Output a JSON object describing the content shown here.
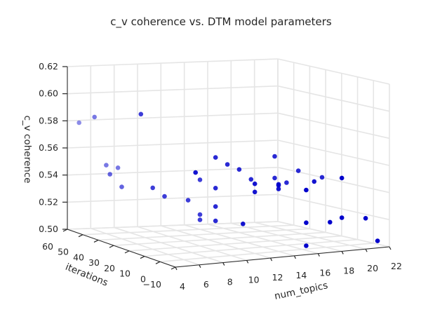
{
  "chart_data": {
    "type": "scatter",
    "projection": "3d",
    "title": "c_v coherence vs. DTM model parameters",
    "xlabel": "num_topics",
    "ylabel": "iterations",
    "zlabel": "c_v coherence",
    "xlim": [
      4,
      22
    ],
    "ylim": [
      -10,
      60
    ],
    "zlim": [
      0.5,
      0.62
    ],
    "x_ticks": [
      "4",
      "6",
      "8",
      "10",
      "12",
      "14",
      "16",
      "18",
      "20",
      "22"
    ],
    "y_ticks": [
      "−10",
      "0",
      "10",
      "20",
      "30",
      "40",
      "50",
      "60"
    ],
    "z_ticks": [
      "0.50",
      "0.52",
      "0.54",
      "0.56",
      "0.58",
      "0.60",
      "0.62"
    ],
    "grid": true,
    "marker_color": "#0000cc",
    "points": [
      {
        "x": 5,
        "y": 20,
        "z": 0.6003
      },
      {
        "x": 5,
        "y": 50,
        "z": 0.5864
      },
      {
        "x": 7,
        "y": 0,
        "z": 0.5635
      },
      {
        "x": 5,
        "y": 60,
        "z": 0.5783
      },
      {
        "x": 5,
        "y": 40,
        "z": 0.5481
      },
      {
        "x": 6,
        "y": 50,
        "z": 0.5505
      },
      {
        "x": 6,
        "y": 40,
        "z": 0.5383
      },
      {
        "x": 6,
        "y": 20,
        "z": 0.5453
      },
      {
        "x": 7,
        "y": 50,
        "z": 0.5482
      },
      {
        "x": 7,
        "y": 20,
        "z": 0.5384
      },
      {
        "x": 10,
        "y": 10,
        "z": 0.5688
      },
      {
        "x": 11,
        "y": 10,
        "z": 0.563
      },
      {
        "x": 10,
        "y": 10,
        "z": 0.5462
      },
      {
        "x": 10,
        "y": 20,
        "z": 0.5488
      },
      {
        "x": 9,
        "y": 20,
        "z": 0.5343
      },
      {
        "x": 10,
        "y": 10,
        "z": 0.5326
      },
      {
        "x": 10,
        "y": 20,
        "z": 0.5231
      },
      {
        "x": 10,
        "y": 10,
        "z": 0.522
      },
      {
        "x": 10,
        "y": 20,
        "z": 0.5192
      },
      {
        "x": 11,
        "y": 0,
        "z": 0.5226
      },
      {
        "x": 12,
        "y": 10,
        "z": 0.5586
      },
      {
        "x": 12,
        "y": 0,
        "z": 0.5514
      },
      {
        "x": 13,
        "y": 10,
        "z": 0.5506
      },
      {
        "x": 12,
        "y": 0,
        "z": 0.5454
      },
      {
        "x": 15,
        "y": 10,
        "z": 0.5662
      },
      {
        "x": 14,
        "y": 0,
        "z": 0.5495
      },
      {
        "x": 14,
        "y": 0,
        "z": 0.5487
      },
      {
        "x": 15,
        "y": 10,
        "z": 0.5502
      },
      {
        "x": 14,
        "y": 0,
        "z": 0.5461
      },
      {
        "x": 15,
        "y": -10,
        "z": 0.5477
      },
      {
        "x": 16,
        "y": 10,
        "z": 0.5461
      },
      {
        "x": 17,
        "y": 0,
        "z": 0.5493
      },
      {
        "x": 17,
        "y": 10,
        "z": 0.5542
      },
      {
        "x": 19,
        "y": 10,
        "z": 0.548
      },
      {
        "x": 18,
        "y": -10,
        "z": 0.5541
      },
      {
        "x": 15,
        "y": -10,
        "z": 0.5236
      },
      {
        "x": 17,
        "y": -10,
        "z": 0.5223
      },
      {
        "x": 18,
        "y": -10,
        "z": 0.5248
      },
      {
        "x": 20,
        "y": -10,
        "z": 0.5227
      },
      {
        "x": 15,
        "y": -10,
        "z": 0.5066
      },
      {
        "x": 21,
        "y": -10,
        "z": 0.5052
      }
    ]
  }
}
